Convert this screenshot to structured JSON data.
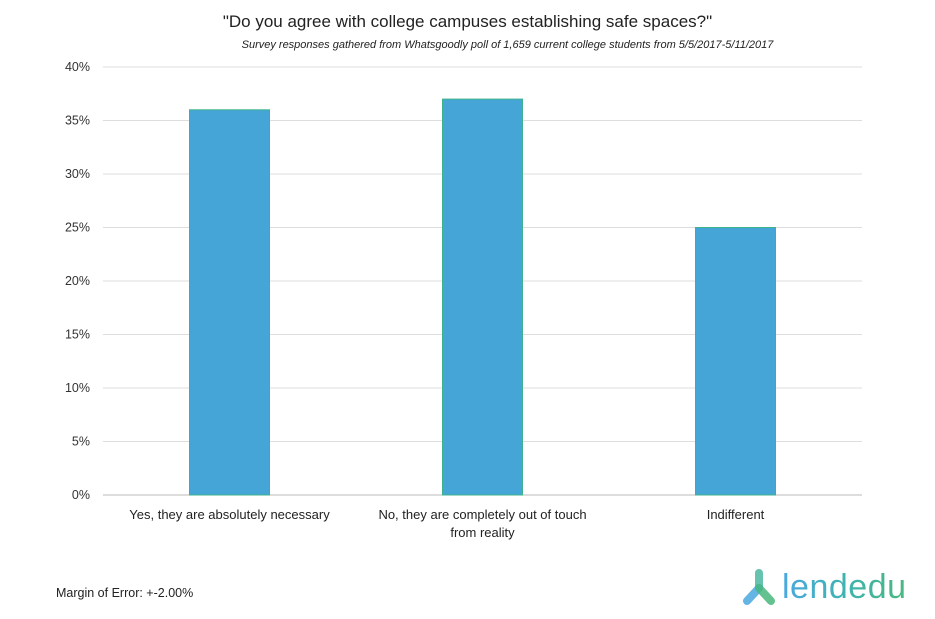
{
  "chart_data": {
    "type": "bar",
    "title": "\"Do you agree with college campuses establishing safe spaces?\"",
    "subtitle": "Survey responses gathered from Whatsgoodly poll of 1,659 current college students from 5/5/2017-5/11/2017",
    "categories": [
      [
        "Yes, they are absolutely necessary"
      ],
      [
        "No, they are completely out of touch",
        "from reality"
      ],
      [
        "Indifferent"
      ]
    ],
    "values": [
      36,
      37,
      25
    ],
    "ylim": [
      0,
      40
    ],
    "yticks": [
      "0%",
      "5%",
      "10%",
      "15%",
      "20%",
      "25%",
      "30%",
      "35%",
      "40%"
    ],
    "grid": true,
    "bar_color": "#45A5D6",
    "bar_border_color": "#3DB38C"
  },
  "footer": {
    "margin_of_error": "Margin of Error: +-2.00%"
  },
  "logo": {
    "text": "lendedu"
  }
}
